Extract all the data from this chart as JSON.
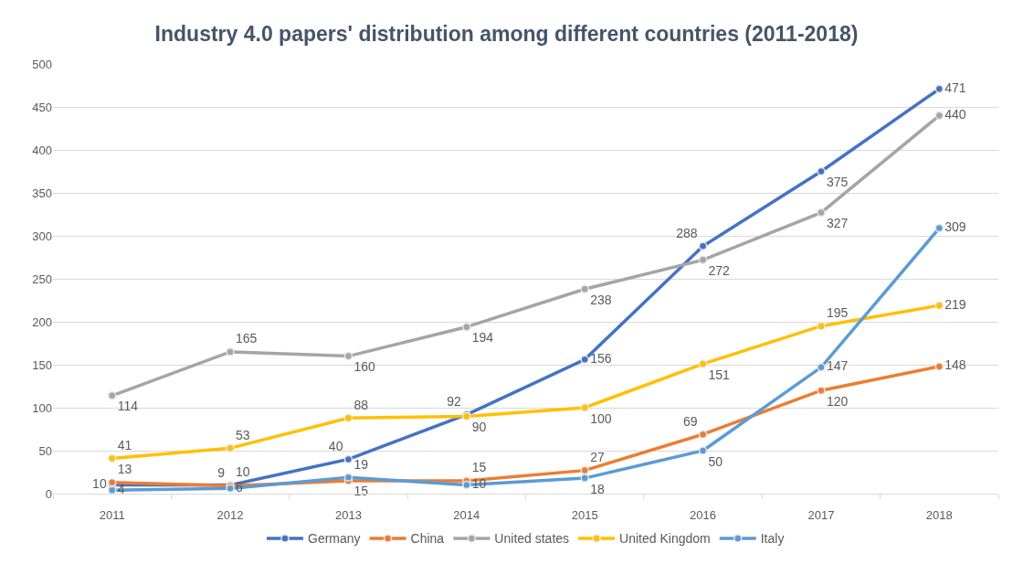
{
  "chart_data": {
    "type": "line",
    "title": "Industry 4.0 papers' distribution among different countries (2011-2018)",
    "categories": [
      "2011",
      "2012",
      "2013",
      "2014",
      "2015",
      "2016",
      "2017",
      "2018"
    ],
    "series": [
      {
        "name": "Germany",
        "color": "#4472c4",
        "values": [
          10,
          10,
          40,
          92,
          156,
          288,
          375,
          471
        ]
      },
      {
        "name": "China",
        "color": "#ed7d31",
        "values": [
          13,
          9,
          15,
          15,
          27,
          69,
          120,
          148
        ]
      },
      {
        "name": "United states",
        "color": "#a5a5a5",
        "values": [
          114,
          165,
          160,
          194,
          238,
          272,
          327,
          440
        ]
      },
      {
        "name": "United Kingdom",
        "color": "#ffc000",
        "values": [
          41,
          53,
          88,
          90,
          100,
          151,
          195,
          219
        ]
      },
      {
        "name": "Italy",
        "color": "#5b9bd5",
        "values": [
          4,
          6,
          19,
          10,
          18,
          50,
          147,
          309
        ]
      }
    ],
    "ylim": [
      0,
      500
    ],
    "yticks": [
      0,
      50,
      100,
      150,
      200,
      250,
      300,
      350,
      400,
      450,
      500
    ],
    "grid": "y",
    "legend": "bottom",
    "marker": "circle",
    "line_style": "solid",
    "data_labels": true
  }
}
